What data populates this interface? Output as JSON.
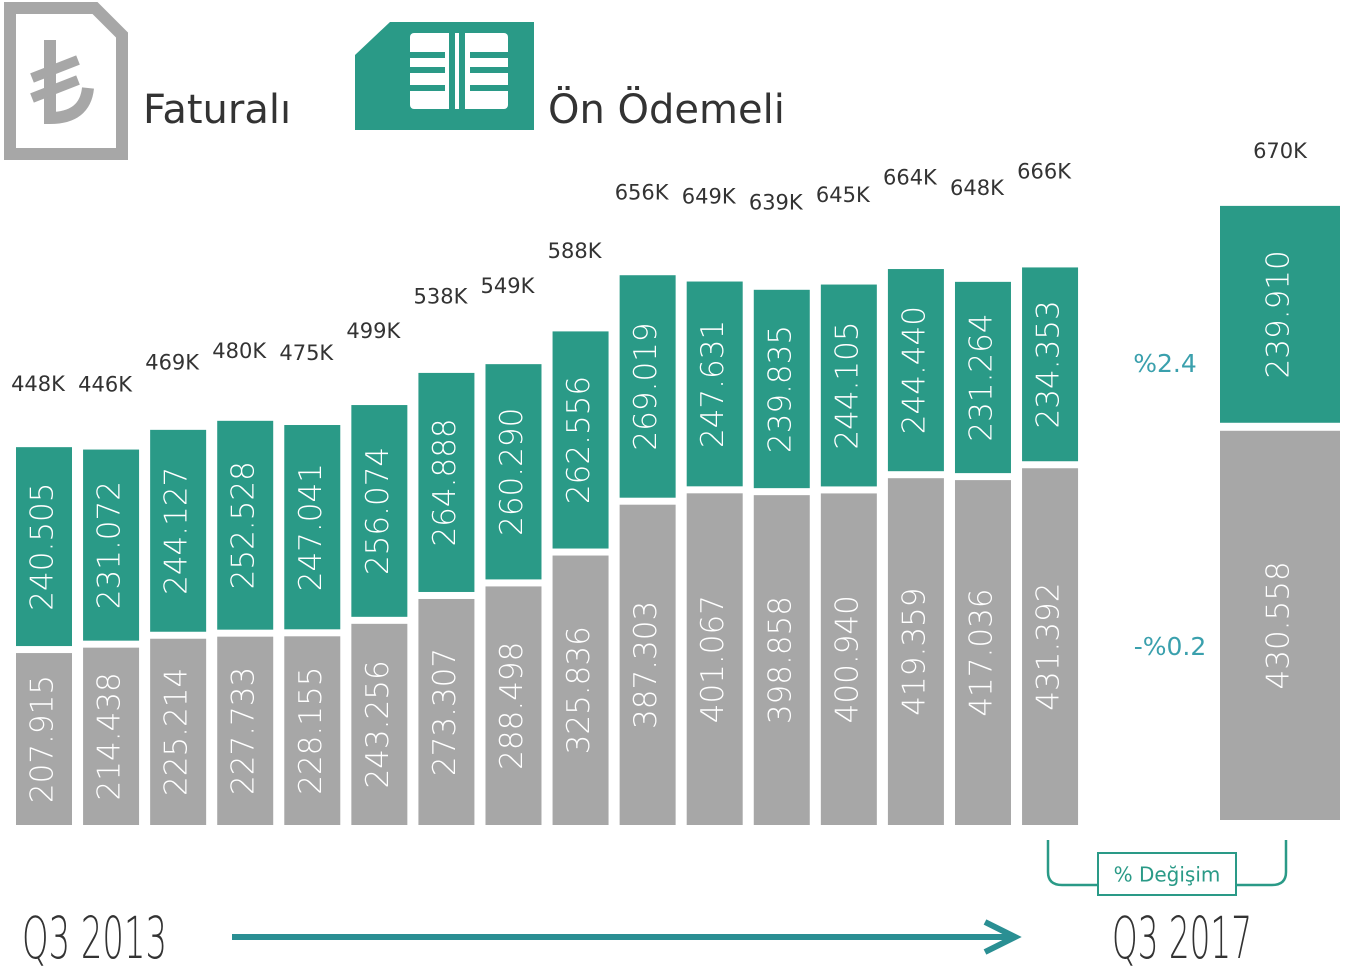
{
  "chart_data": {
    "type": "stacked_bar",
    "categories": [
      null,
      null,
      null,
      null,
      null,
      null,
      null,
      null,
      null,
      null,
      null,
      null,
      null,
      null,
      null,
      null,
      null
    ],
    "start_label": "Q3 2013",
    "end_label": "Q3 2017",
    "series": [
      {
        "name": "Faturalı",
        "color": "#a7a7a7",
        "values": [
          207915,
          214438,
          225214,
          227733,
          228155,
          243256,
          273307,
          288498,
          325836,
          387303,
          401067,
          398858,
          400940,
          419359,
          417036,
          431392,
          430558
        ],
        "value_labels": [
          "207.915",
          "214.438",
          "225.214",
          "227.733",
          "228.155",
          "243.256",
          "273.307",
          "288.498",
          "325.836",
          "387.303",
          "401.067",
          "398.858",
          "400.940",
          "419.359",
          "417.036",
          "431.392",
          "430.558"
        ]
      },
      {
        "name": "Ön Ödemeli",
        "color": "#2a9a87",
        "values": [
          240505,
          231072,
          244127,
          252528,
          247041,
          256074,
          264888,
          260290,
          262556,
          269019,
          247631,
          239835,
          244105,
          244440,
          231264,
          234353,
          239910
        ],
        "value_labels": [
          "240.505",
          "231.072",
          "244.127",
          "252.528",
          "247.041",
          "256.074",
          "264.888",
          "260.290",
          "262.556",
          "269.019",
          "247.631",
          "239.835",
          "244.105",
          "244.440",
          "231.264",
          "234.353",
          "239.910"
        ]
      }
    ],
    "totals": [
      448000,
      446000,
      469000,
      480000,
      475000,
      499000,
      538000,
      549000,
      588000,
      656000,
      649000,
      639000,
      645000,
      664000,
      648000,
      666000,
      670000
    ],
    "total_labels": [
      "448K",
      "446K",
      "469K",
      "480K",
      "475K",
      "499K",
      "538K",
      "549K",
      "588K",
      "656K",
      "649K",
      "639K",
      "645K",
      "664K",
      "648K",
      "666K",
      "670K"
    ],
    "changes": [
      {
        "value": 2.4,
        "label": "%2.4"
      },
      {
        "value": -0.2,
        "label": "-%0.2"
      }
    ],
    "changes_title": "% Değişim"
  }
}
